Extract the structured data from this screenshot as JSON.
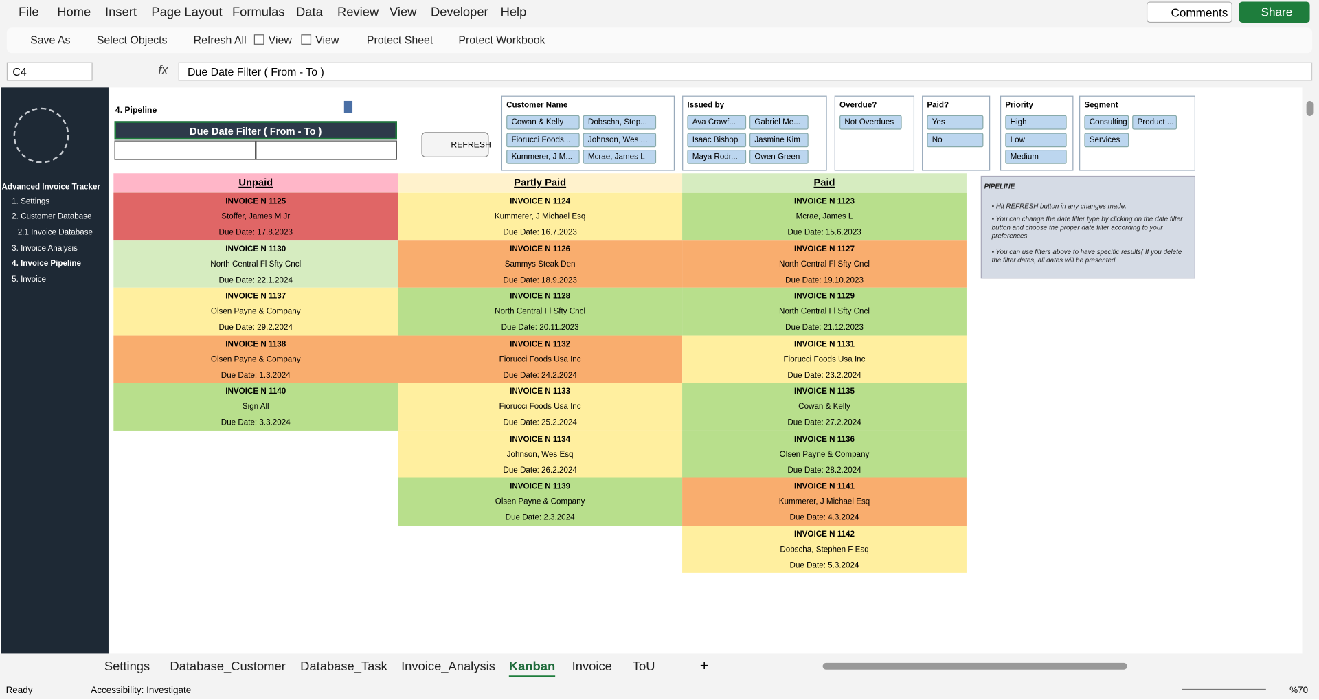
{
  "menu": [
    "File",
    "Home",
    "Insert",
    "Page Layout",
    "Formulas",
    "Data",
    "Review",
    "View",
    "Developer",
    "Help"
  ],
  "comments": "Comments",
  "share": "Share",
  "toolbar": [
    "Save As",
    "Select Objects",
    "Refresh All",
    "View",
    "View",
    "Protect Sheet",
    "Protect Workbook"
  ],
  "formula_bar": {
    "cell": "C4",
    "content": "Due Date Filter ( From - To )"
  },
  "sidebar": {
    "title": "Advanced Invoice Tracker",
    "items": [
      "1. Settings",
      "2. Customer Database",
      "2.1 Invoice Database",
      "3. Invoice Analysis",
      "4. Invoice Pipeline",
      "5. Invoice"
    ]
  },
  "pipeline_label": "4. Pipeline",
  "filter_header": "Due Date Filter ( From - To )",
  "refresh": "REFRESH",
  "slicers": [
    {
      "title": "Customer Name",
      "items": [
        "Cowan & Kelly",
        "Dobscha, Step...",
        "Fiorucci Foods...",
        "Johnson, Wes ...",
        "Kummerer, J M...",
        "Mcrae, James L"
      ]
    },
    {
      "title": "Issued by",
      "items": [
        "Ava Crawf...",
        "Gabriel Me...",
        "Isaac Bishop",
        "Jasmine Kim",
        "Maya Rodr...",
        "Owen Green"
      ]
    },
    {
      "title": "Overdue?",
      "items": [
        "Not Overdues"
      ]
    },
    {
      "title": "Paid?",
      "items": [
        "Yes",
        "No"
      ]
    },
    {
      "title": "Priority",
      "items": [
        "High",
        "Low",
        "Medium"
      ]
    },
    {
      "title": "Segment",
      "items": [
        "Consulting",
        "Product ...",
        "Services"
      ]
    }
  ],
  "columns": [
    {
      "title": "Unpaid",
      "color": "#ffb6c8",
      "cards": [
        {
          "invoice": "INVOICE N 1125",
          "customer": "Stoffer, James M Jr",
          "due": "Due Date: 17.8.2023",
          "color": "#e06666"
        },
        {
          "invoice": "INVOICE N 1130",
          "customer": "North Central Fl Sfty Cncl",
          "due": "Due Date: 22.1.2024",
          "color": "#d6ecc0"
        },
        {
          "invoice": "INVOICE N 1137",
          "customer": "Olsen Payne & Company",
          "due": "Due Date: 29.2.2024",
          "color": "#ffef9f"
        },
        {
          "invoice": "INVOICE N 1138",
          "customer": "Olsen Payne & Company",
          "due": "Due Date: 1.3.2024",
          "color": "#f9ad6e"
        },
        {
          "invoice": "INVOICE N 1140",
          "customer": "Sign All",
          "due": "Due Date: 3.3.2024",
          "color": "#b8df8c"
        }
      ]
    },
    {
      "title": "Partly Paid",
      "color": "#fff2cc",
      "cards": [
        {
          "invoice": "INVOICE N 1124",
          "customer": "Kummerer, J Michael Esq",
          "due": "Due Date: 16.7.2023",
          "color": "#ffef9f"
        },
        {
          "invoice": "INVOICE N 1126",
          "customer": "Sammys Steak Den",
          "due": "Due Date: 18.9.2023",
          "color": "#f9ad6e"
        },
        {
          "invoice": "INVOICE N 1128",
          "customer": "North Central Fl Sfty Cncl",
          "due": "Due Date: 20.11.2023",
          "color": "#b8df8c"
        },
        {
          "invoice": "INVOICE N 1132",
          "customer": "Fiorucci Foods Usa Inc",
          "due": "Due Date: 24.2.2024",
          "color": "#f9ad6e"
        },
        {
          "invoice": "INVOICE N 1133",
          "customer": "Fiorucci Foods Usa Inc",
          "due": "Due Date: 25.2.2024",
          "color": "#ffef9f"
        },
        {
          "invoice": "INVOICE N 1134",
          "customer": "Johnson, Wes Esq",
          "due": "Due Date: 26.2.2024",
          "color": "#ffef9f"
        },
        {
          "invoice": "INVOICE N 1139",
          "customer": "Olsen Payne & Company",
          "due": "Due Date: 2.3.2024",
          "color": "#b8df8c"
        }
      ]
    },
    {
      "title": "Paid",
      "color": "#d6ecc0",
      "cards": [
        {
          "invoice": "INVOICE N 1123",
          "customer": "Mcrae, James L",
          "due": "Due Date: 15.6.2023",
          "color": "#b8df8c"
        },
        {
          "invoice": "INVOICE N 1127",
          "customer": "North Central Fl Sfty Cncl",
          "due": "Due Date: 19.10.2023",
          "color": "#f9ad6e"
        },
        {
          "invoice": "INVOICE N 1129",
          "customer": "North Central Fl Sfty Cncl",
          "due": "Due Date: 21.12.2023",
          "color": "#b8df8c"
        },
        {
          "invoice": "INVOICE N 1131",
          "customer": "Fiorucci Foods Usa Inc",
          "due": "Due Date: 23.2.2024",
          "color": "#ffef9f"
        },
        {
          "invoice": "INVOICE N 1135",
          "customer": "Cowan & Kelly",
          "due": "Due Date: 27.2.2024",
          "color": "#b8df8c"
        },
        {
          "invoice": "INVOICE N 1136",
          "customer": "Olsen Payne & Company",
          "due": "Due Date: 28.2.2024",
          "color": "#b8df8c"
        },
        {
          "invoice": "INVOICE N 1141",
          "customer": "Kummerer, J Michael Esq",
          "due": "Due Date: 4.3.2024",
          "color": "#f9ad6e"
        },
        {
          "invoice": "INVOICE N 1142",
          "customer": "Dobscha, Stephen F Esq",
          "due": "Due Date: 5.3.2024",
          "color": "#ffef9f"
        }
      ]
    }
  ],
  "info": {
    "title": "PIPELINE",
    "bullets": [
      "Hit REFRESH button in any changes made.",
      "You can change the date filter type by clicking on the date filter button and choose the proper date filter according to your preferences",
      "You can use filters above to have specific results( If you delete the filter dates, all dates will be presented."
    ]
  },
  "tabs": [
    "Settings",
    "Database_Customer",
    "Database_Task",
    "Invoice_Analysis",
    "Kanban",
    "Invoice",
    "ToU"
  ],
  "active_tab": 4,
  "status": {
    "ready": "Ready",
    "accessibility": "Accessibility: Investigate",
    "zoom": "%70"
  }
}
